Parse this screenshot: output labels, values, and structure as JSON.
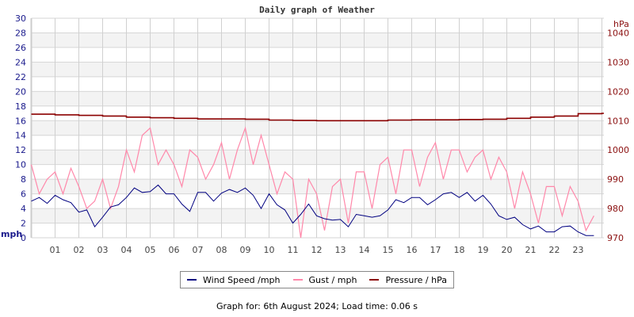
{
  "title": "Daily graph of Weather",
  "footer": "Graph for: 6th August 2024; Load time: 0.06 s",
  "chart_data": {
    "type": "line",
    "title": "Daily graph of Weather",
    "left_axis": {
      "label": "mph",
      "range": [
        0,
        30
      ],
      "ticks": [
        "0",
        "2",
        "4",
        "6",
        "8",
        "10",
        "12",
        "14",
        "16",
        "18",
        "20",
        "22",
        "24",
        "26",
        "28",
        "30"
      ],
      "color": "#1a1a8c"
    },
    "right_axis": {
      "label": "hPa",
      "range": [
        970,
        1045
      ],
      "ticks": [
        "970",
        "980",
        "990",
        "1000",
        "1010",
        "1020",
        "1030",
        "1040"
      ],
      "color": "#8b1010"
    },
    "x_axis": {
      "range": [
        0,
        24
      ],
      "ticks": [
        "01",
        "02",
        "03",
        "04",
        "05",
        "06",
        "07",
        "08",
        "09",
        "10",
        "11",
        "12",
        "13",
        "14",
        "15",
        "16",
        "17",
        "18",
        "19",
        "20",
        "21",
        "22",
        "23"
      ]
    },
    "grid": true,
    "legend_position": "bottom",
    "series": [
      {
        "name": "Wind Speed /mph",
        "axis": "left",
        "color": "#000080",
        "x_step_hours": 0.3333,
        "values": [
          5.0,
          5.5,
          4.7,
          5.8,
          5.2,
          4.8,
          3.5,
          3.8,
          1.5,
          2.8,
          4.2,
          4.5,
          5.5,
          6.8,
          6.2,
          6.3,
          7.2,
          6.0,
          6.0,
          4.6,
          3.6,
          6.2,
          6.2,
          5.0,
          6.1,
          6.6,
          6.2,
          6.8,
          5.8,
          4.0,
          6.0,
          4.5,
          3.8,
          2.0,
          3.2,
          4.6,
          3.0,
          2.6,
          2.4,
          2.5,
          1.5,
          3.2,
          3.0,
          2.8,
          3.0,
          3.8,
          5.2,
          4.8,
          5.5,
          5.5,
          4.5,
          5.2,
          6.0,
          6.2,
          5.5,
          6.2,
          5.0,
          5.8,
          4.6,
          3.0,
          2.5,
          2.8,
          1.8,
          1.2,
          1.6,
          0.8,
          0.8,
          1.5,
          1.6,
          0.8,
          0.3,
          0.3
        ]
      },
      {
        "name": "Gust / mph",
        "axis": "left",
        "color": "#ff88aa",
        "x_step_hours": 0.3333,
        "values": [
          10,
          6,
          8,
          9,
          6,
          9.5,
          7,
          4,
          5,
          8,
          4,
          7,
          12,
          9,
          14,
          15,
          10,
          12,
          10,
          7,
          12,
          11,
          8,
          10,
          13,
          8,
          12,
          15,
          10,
          14,
          10,
          6,
          9,
          8,
          0,
          8,
          6,
          1,
          7,
          8,
          2,
          9,
          9,
          4,
          10,
          11,
          6,
          12,
          12,
          7,
          11,
          13,
          8,
          12,
          12,
          9,
          11,
          12,
          8,
          11,
          9,
          4,
          9,
          6,
          2,
          7,
          7,
          3,
          7,
          5,
          1,
          3
        ]
      },
      {
        "name": "Pressure / hPa",
        "axis": "right",
        "color": "#8b0000",
        "x_step_hours": 1,
        "values": [
          1012.2,
          1012.0,
          1011.8,
          1011.6,
          1011.2,
          1011.0,
          1010.8,
          1010.6,
          1010.6,
          1010.5,
          1010.2,
          1010.1,
          1010.0,
          1010.0,
          1010.0,
          1010.2,
          1010.3,
          1010.3,
          1010.4,
          1010.5,
          1010.8,
          1011.2,
          1011.6,
          1012.4,
          1012.5
        ]
      }
    ]
  }
}
